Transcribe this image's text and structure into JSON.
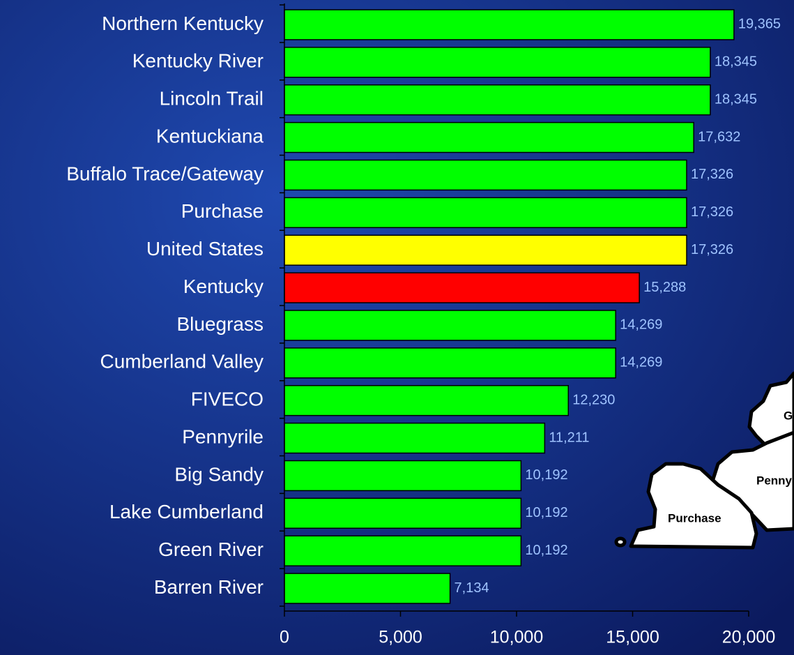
{
  "chart_data": {
    "type": "hbar",
    "categories": [
      "Northern Kentucky",
      "Kentucky River",
      "Lincoln Trail",
      "Kentuckiana",
      "Buffalo Trace/Gateway",
      "Purchase",
      "United States",
      "Kentucky",
      "Bluegrass",
      "Cumberland Valley",
      "FIVECO",
      "Pennyrile",
      "Big Sandy",
      "Lake Cumberland",
      "Green River",
      "Barren River"
    ],
    "values": [
      19365,
      18345,
      18345,
      17632,
      17326,
      17326,
      17326,
      15288,
      14269,
      14269,
      12230,
      11211,
      10192,
      10192,
      10192,
      7134
    ],
    "value_labels": [
      "19,365",
      "18,345",
      "18,345",
      "17,632",
      "17,326",
      "17,326",
      "17,326",
      "15,288",
      "14,269",
      "14,269",
      "12,230",
      "11,211",
      "10,192",
      "10,192",
      "10,192",
      "7,134"
    ],
    "colors": [
      "#00ff00",
      "#00ff00",
      "#00ff00",
      "#00ff00",
      "#00ff00",
      "#00ff00",
      "#ffff00",
      "#ff0000",
      "#00ff00",
      "#00ff00",
      "#00ff00",
      "#00ff00",
      "#00ff00",
      "#00ff00",
      "#00ff00",
      "#00ff00"
    ],
    "xlim": [
      0,
      20000
    ],
    "xticks": [
      0,
      {
        "value": 5000,
        "label": "5,000"
      },
      {
        "value": 10000,
        "label": "10,000"
      },
      {
        "value": 15000,
        "label": "15,000"
      },
      {
        "value": 20000,
        "label": "20,000"
      }
    ],
    "map_labels": [
      "Purchase",
      "Penny",
      "G"
    ]
  }
}
